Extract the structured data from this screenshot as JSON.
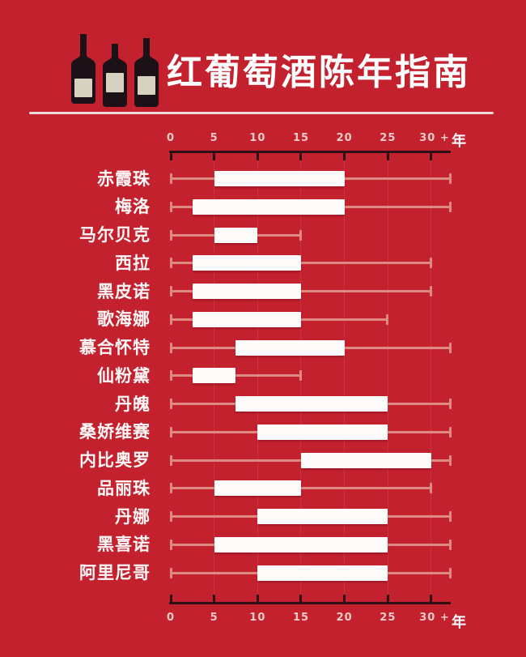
{
  "header": {
    "title": "红葡萄酒陈年指南"
  },
  "colors": {
    "background": "#c4212f",
    "title_text": "#ffffff",
    "divider": "#eedcda",
    "axis_line": "#2e0f15",
    "tick_label": "#efccc8",
    "unit_label": "#ffffff",
    "grape_label": "#fdf8f7",
    "whisker": "#dd8a84",
    "bar": "#fdfcfb",
    "bottle_body": "#1c1117",
    "bottle_label": "#d7d1c2"
  },
  "chart_data": {
    "type": "bar",
    "subtype": "horizontal-range-with-whiskers",
    "title": "红葡萄酒陈年指南",
    "xlabel": "年",
    "axis_unit": "年",
    "xlim": [
      0,
      32
    ],
    "axes": "top-and-bottom",
    "grid": "dotted-vertical",
    "x_ticks": [
      {
        "value": 0,
        "label": "0"
      },
      {
        "value": 5,
        "label": "5"
      },
      {
        "value": 10,
        "label": "10"
      },
      {
        "value": 15,
        "label": "15"
      },
      {
        "value": 20,
        "label": "20"
      },
      {
        "value": 25,
        "label": "25"
      },
      {
        "value": 30,
        "label": "30 +"
      }
    ],
    "rows": [
      {
        "label": "赤霞珠",
        "bar_min": 5,
        "bar_max": 20,
        "whisker_min": 0,
        "whisker_max": "30+"
      },
      {
        "label": "梅洛",
        "bar_min": 2.5,
        "bar_max": 20,
        "whisker_min": 0,
        "whisker_max": "30+"
      },
      {
        "label": "马尔贝克",
        "bar_min": 5,
        "bar_max": 10,
        "whisker_min": 0,
        "whisker_max": 15
      },
      {
        "label": "西拉",
        "bar_min": 2.5,
        "bar_max": 15,
        "whisker_min": 0,
        "whisker_max": 30
      },
      {
        "label": "黑皮诺",
        "bar_min": 2.5,
        "bar_max": 15,
        "whisker_min": 0,
        "whisker_max": 30
      },
      {
        "label": "歌海娜",
        "bar_min": 2.5,
        "bar_max": 15,
        "whisker_min": 0,
        "whisker_max": 25
      },
      {
        "label": "慕合怀特",
        "bar_min": 7.5,
        "bar_max": 20,
        "whisker_min": 0,
        "whisker_max": "30+"
      },
      {
        "label": "仙粉黛",
        "bar_min": 2.5,
        "bar_max": 7.5,
        "whisker_min": 0,
        "whisker_max": 15
      },
      {
        "label": "丹魄",
        "bar_min": 7.5,
        "bar_max": 25,
        "whisker_min": 0,
        "whisker_max": "30+"
      },
      {
        "label": "桑娇维赛",
        "bar_min": 10,
        "bar_max": 25,
        "whisker_min": 0,
        "whisker_max": "30+"
      },
      {
        "label": "内比奥罗",
        "bar_min": 15,
        "bar_max": 30,
        "whisker_min": 0,
        "whisker_max": "30+"
      },
      {
        "label": "品丽珠",
        "bar_min": 5,
        "bar_max": 15,
        "whisker_min": 0,
        "whisker_max": 30
      },
      {
        "label": "丹娜",
        "bar_min": 10,
        "bar_max": 25,
        "whisker_min": 0,
        "whisker_max": "30+"
      },
      {
        "label": "黑喜诺",
        "bar_min": 5,
        "bar_max": 25,
        "whisker_min": 0,
        "whisker_max": "30+"
      },
      {
        "label": "阿里尼哥",
        "bar_min": 10,
        "bar_max": 25,
        "whisker_min": 0,
        "whisker_max": "30+"
      }
    ]
  }
}
